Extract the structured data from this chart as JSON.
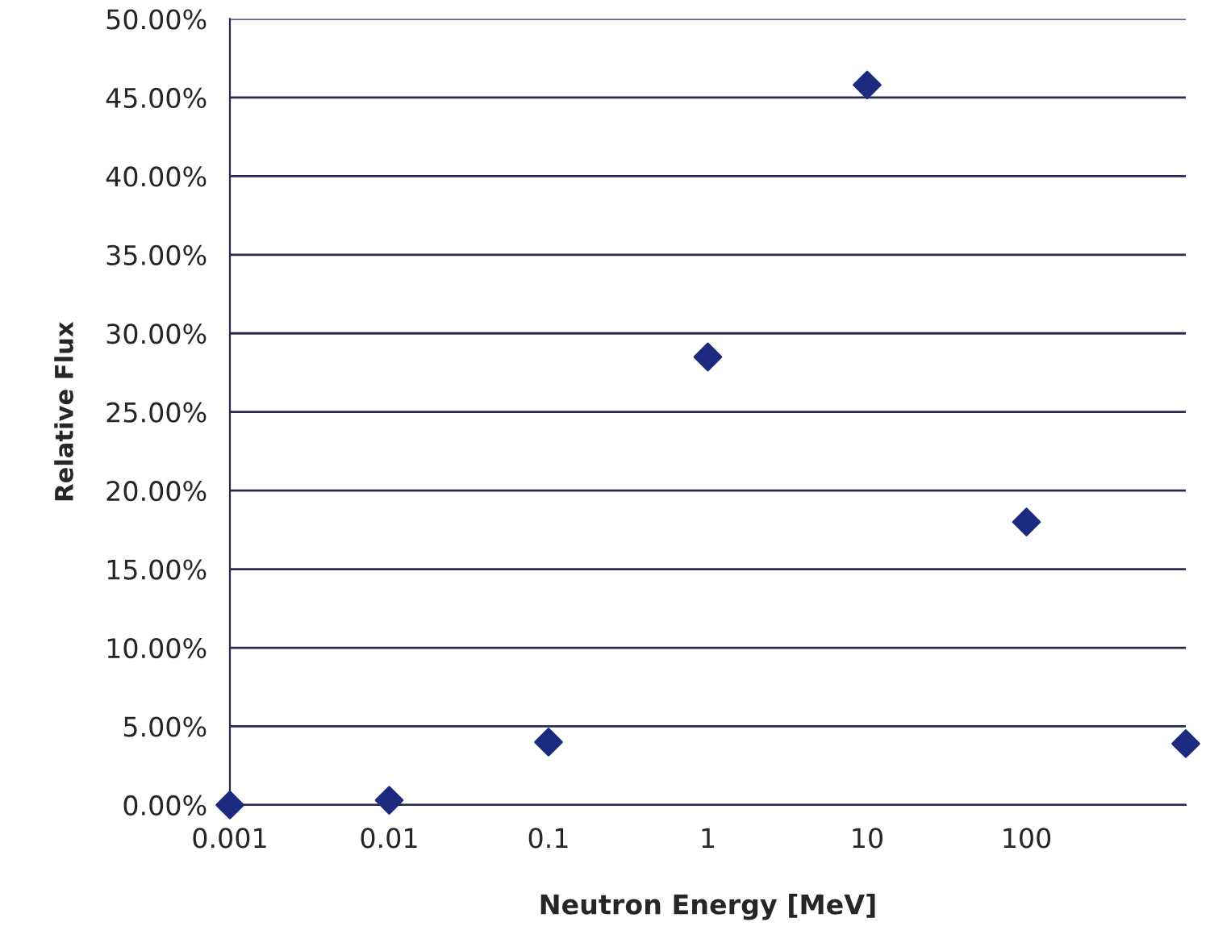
{
  "chart_data": {
    "type": "scatter",
    "xlabel": "Neutron Energy [MeV]",
    "ylabel": "Relative Flux",
    "x": [
      0.001,
      0.01,
      0.1,
      1,
      10,
      100,
      1000
    ],
    "series": [
      {
        "color": "#1c2a80",
        "values": [
          0.0,
          0.3,
          4.0,
          28.5,
          45.8,
          18.0,
          3.9
        ]
      }
    ],
    "log": "x",
    "xlim": [
      0.001,
      1000
    ],
    "xticks": [
      0.001,
      0.01,
      0.1,
      1,
      10,
      100
    ],
    "ylim": [
      0,
      50
    ],
    "yticks": [
      {
        "value": 0,
        "label": "0.00%"
      },
      {
        "value": 5,
        "label": "5.00%"
      },
      {
        "value": 10,
        "label": "10.00%"
      },
      {
        "value": 15,
        "label": "15.00%"
      },
      {
        "value": 20,
        "label": "20.00%"
      },
      {
        "value": 25,
        "label": "25.00%"
      },
      {
        "value": 30,
        "label": "30.00%"
      },
      {
        "value": 35,
        "label": "35.00%"
      },
      {
        "value": 40,
        "label": "40.00%"
      },
      {
        "value": 45,
        "label": "45.00%"
      },
      {
        "value": 50,
        "label": "50.00%"
      }
    ],
    "grid": "y",
    "marker": "diamond",
    "legend": false
  }
}
